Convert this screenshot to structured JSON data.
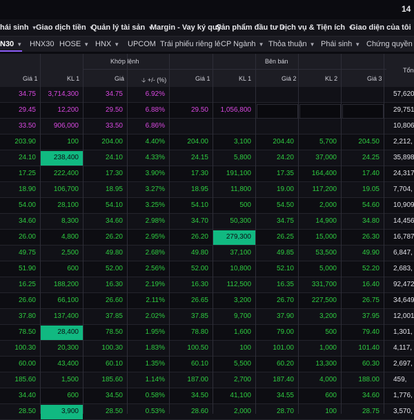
{
  "top_right": "14",
  "topnav": [
    {
      "label": "hái sinh",
      "chev": true
    },
    {
      "label": "Giao dịch tiền",
      "chev": true
    },
    {
      "label": "Quản lý tài sản",
      "chev": true
    },
    {
      "label": "Margin - Vay ký quỹ",
      "chev": false
    },
    {
      "label": "Sản phẩm đầu tư",
      "chev": true
    },
    {
      "label": "Dịch vụ & Tiện ích",
      "chev": true
    },
    {
      "label": "Giao diện của tôi",
      "chev": false
    }
  ],
  "tabs": [
    {
      "label": "N30",
      "chev": true,
      "active": true
    },
    {
      "label": "HNX30",
      "chev": false,
      "active": false
    },
    {
      "label": "HOSE",
      "chev": true,
      "active": false
    },
    {
      "label": "HNX",
      "chev": true,
      "active": false
    },
    {
      "label": "UPCOM",
      "chev": false,
      "active": false
    },
    {
      "label": "Trái phiếu riêng lẻ",
      "chev": false,
      "active": false
    },
    {
      "label": "CP Ngành",
      "chev": true,
      "active": false
    },
    {
      "label": "Thỏa thuận",
      "chev": true,
      "active": false
    },
    {
      "label": "Phái sinh",
      "chev": true,
      "active": false
    },
    {
      "label": "Chứng quyền",
      "chev": true,
      "active": false
    }
  ],
  "headers": {
    "khop_lenh": "Khớp lệnh",
    "ben_ban": "Bên bán",
    "tong": "Tổng",
    "buy_gia1": "Giá 1",
    "buy_kl1": "KL 1",
    "match_gia": "Giá",
    "match_change": "+/- (%)",
    "sell_gia1": "Giá 1",
    "sell_kl1": "KL 1",
    "sell_gia2": "Giá 2",
    "sell_kl2": "KL 2",
    "sell_gia3": "Giá 3"
  },
  "colors": {
    "up": "#2ecc40",
    "ceiling": "#d848e0",
    "highlight": "#11b981"
  },
  "rows": [
    {
      "c": "ceil",
      "buy_gia1": "34.75",
      "buy_kl1": "3,714,300",
      "gia": "34.75",
      "pct": "6.92%",
      "sell_gia1": "",
      "sell_kl1": "",
      "sell_gia2": "",
      "sell_kl2": "",
      "sell_gia3": "",
      "tong": "57,620,",
      "empty": false,
      "hl": ""
    },
    {
      "c": "ceil",
      "buy_gia1": "29.45",
      "buy_kl1": "12,200",
      "gia": "29.50",
      "pct": "6.88%",
      "sell_gia1": "29.50",
      "sell_kl1": "1,056,800",
      "sell_gia2": "",
      "sell_kl2": "",
      "sell_gia3": "",
      "tong": "29,751,",
      "empty": true,
      "hl": ""
    },
    {
      "c": "ceil",
      "buy_gia1": "33.50",
      "buy_kl1": "906,000",
      "gia": "33.50",
      "pct": "6.86%",
      "sell_gia1": "",
      "sell_kl1": "",
      "sell_gia2": "",
      "sell_kl2": "",
      "sell_gia3": "",
      "tong": "10,806,",
      "empty": false,
      "hl": ""
    },
    {
      "c": "up",
      "buy_gia1": "203.90",
      "buy_kl1": "100",
      "gia": "204.00",
      "pct": "4.40%",
      "sell_gia1": "204.00",
      "sell_kl1": "3,100",
      "sell_gia2": "204.40",
      "sell_kl2": "5,700",
      "sell_gia3": "204.50",
      "tong": "2,212,",
      "empty": false,
      "hl": ""
    },
    {
      "c": "up",
      "buy_gia1": "24.10",
      "buy_kl1": "238,400",
      "gia": "24.10",
      "pct": "4.33%",
      "sell_gia1": "24.15",
      "sell_kl1": "5,800",
      "sell_gia2": "24.20",
      "sell_kl2": "37,000",
      "sell_gia3": "24.25",
      "tong": "35,898,",
      "empty": false,
      "hl": "buy_kl1"
    },
    {
      "c": "up",
      "buy_gia1": "17.25",
      "buy_kl1": "222,400",
      "gia": "17.30",
      "pct": "3.90%",
      "sell_gia1": "17.30",
      "sell_kl1": "191,100",
      "sell_gia2": "17.35",
      "sell_kl2": "164,400",
      "sell_gia3": "17.40",
      "tong": "24,317,",
      "empty": false,
      "hl": ""
    },
    {
      "c": "up",
      "buy_gia1": "18.90",
      "buy_kl1": "106,700",
      "gia": "18.95",
      "pct": "3.27%",
      "sell_gia1": "18.95",
      "sell_kl1": "11,800",
      "sell_gia2": "19.00",
      "sell_kl2": "117,200",
      "sell_gia3": "19.05",
      "tong": "7,704,",
      "empty": false,
      "hl": ""
    },
    {
      "c": "up",
      "buy_gia1": "54.00",
      "buy_kl1": "28,100",
      "gia": "54.10",
      "pct": "3.25%",
      "sell_gia1": "54.10",
      "sell_kl1": "500",
      "sell_gia2": "54.50",
      "sell_kl2": "2,000",
      "sell_gia3": "54.60",
      "tong": "10,909,",
      "empty": false,
      "hl": ""
    },
    {
      "c": "up",
      "buy_gia1": "34.60",
      "buy_kl1": "8,300",
      "gia": "34.60",
      "pct": "2.98%",
      "sell_gia1": "34.70",
      "sell_kl1": "50,300",
      "sell_gia2": "34.75",
      "sell_kl2": "14,900",
      "sell_gia3": "34.80",
      "tong": "14,456,",
      "empty": false,
      "hl": ""
    },
    {
      "c": "up",
      "buy_gia1": "26.00",
      "buy_kl1": "4,800",
      "gia": "26.20",
      "pct": "2.95%",
      "sell_gia1": "26.20",
      "sell_kl1": "279,300",
      "sell_gia2": "26.25",
      "sell_kl2": "15,000",
      "sell_gia3": "26.30",
      "tong": "16,787,",
      "empty": false,
      "hl": "sell_kl1"
    },
    {
      "c": "up",
      "buy_gia1": "49.75",
      "buy_kl1": "2,500",
      "gia": "49.80",
      "pct": "2.68%",
      "sell_gia1": "49.80",
      "sell_kl1": "37,100",
      "sell_gia2": "49.85",
      "sell_kl2": "53,500",
      "sell_gia3": "49.90",
      "tong": "6,847,",
      "empty": false,
      "hl": ""
    },
    {
      "c": "up",
      "buy_gia1": "51.90",
      "buy_kl1": "600",
      "gia": "52.00",
      "pct": "2.56%",
      "sell_gia1": "52.00",
      "sell_kl1": "10,800",
      "sell_gia2": "52.10",
      "sell_kl2": "5,000",
      "sell_gia3": "52.20",
      "tong": "2,683,",
      "empty": false,
      "hl": ""
    },
    {
      "c": "up",
      "buy_gia1": "16.25",
      "buy_kl1": "188,200",
      "gia": "16.30",
      "pct": "2.19%",
      "sell_gia1": "16.30",
      "sell_kl1": "112,500",
      "sell_gia2": "16.35",
      "sell_kl2": "331,700",
      "sell_gia3": "16.40",
      "tong": "92,472,",
      "empty": false,
      "hl": ""
    },
    {
      "c": "up",
      "buy_gia1": "26.60",
      "buy_kl1": "66,100",
      "gia": "26.60",
      "pct": "2.11%",
      "sell_gia1": "26.65",
      "sell_kl1": "3,200",
      "sell_gia2": "26.70",
      "sell_kl2": "227,500",
      "sell_gia3": "26.75",
      "tong": "34,649,",
      "empty": false,
      "hl": ""
    },
    {
      "c": "up",
      "buy_gia1": "37.80",
      "buy_kl1": "137,400",
      "gia": "37.85",
      "pct": "2.02%",
      "sell_gia1": "37.85",
      "sell_kl1": "9,700",
      "sell_gia2": "37.90",
      "sell_kl2": "3,200",
      "sell_gia3": "37.95",
      "tong": "12,001,",
      "empty": false,
      "hl": ""
    },
    {
      "c": "up",
      "buy_gia1": "78.50",
      "buy_kl1": "28,400",
      "gia": "78.50",
      "pct": "1.95%",
      "sell_gia1": "78.80",
      "sell_kl1": "1,600",
      "sell_gia2": "79.00",
      "sell_kl2": "500",
      "sell_gia3": "79.40",
      "tong": "1,301,",
      "empty": false,
      "hl": "buy_kl1"
    },
    {
      "c": "up",
      "buy_gia1": "100.30",
      "buy_kl1": "20,300",
      "gia": "100.30",
      "pct": "1.83%",
      "sell_gia1": "100.50",
      "sell_kl1": "100",
      "sell_gia2": "101.00",
      "sell_kl2": "1,000",
      "sell_gia3": "101.40",
      "tong": "4,117,",
      "empty": false,
      "hl": ""
    },
    {
      "c": "up",
      "buy_gia1": "60.00",
      "buy_kl1": "43,400",
      "gia": "60.10",
      "pct": "1.35%",
      "sell_gia1": "60.10",
      "sell_kl1": "5,500",
      "sell_gia2": "60.20",
      "sell_kl2": "13,300",
      "sell_gia3": "60.30",
      "tong": "2,697,",
      "empty": false,
      "hl": ""
    },
    {
      "c": "up",
      "buy_gia1": "185.60",
      "buy_kl1": "1,500",
      "gia": "185.60",
      "pct": "1.14%",
      "sell_gia1": "187.00",
      "sell_kl1": "2,700",
      "sell_gia2": "187.40",
      "sell_kl2": "4,000",
      "sell_gia3": "188.00",
      "tong": "459,",
      "empty": false,
      "hl": ""
    },
    {
      "c": "up",
      "buy_gia1": "34.40",
      "buy_kl1": "600",
      "gia": "34.50",
      "pct": "0.58%",
      "sell_gia1": "34.50",
      "sell_kl1": "41,100",
      "sell_gia2": "34.55",
      "sell_kl2": "600",
      "sell_gia3": "34.60",
      "tong": "1,776,",
      "empty": false,
      "hl": ""
    },
    {
      "c": "up",
      "buy_gia1": "28.50",
      "buy_kl1": "3,900",
      "gia": "28.50",
      "pct": "0.53%",
      "sell_gia1": "28.60",
      "sell_kl1": "2,000",
      "sell_gia2": "28.70",
      "sell_kl2": "100",
      "sell_gia3": "28.75",
      "tong": "3,570,",
      "empty": false,
      "hl": "buy_kl1"
    }
  ]
}
